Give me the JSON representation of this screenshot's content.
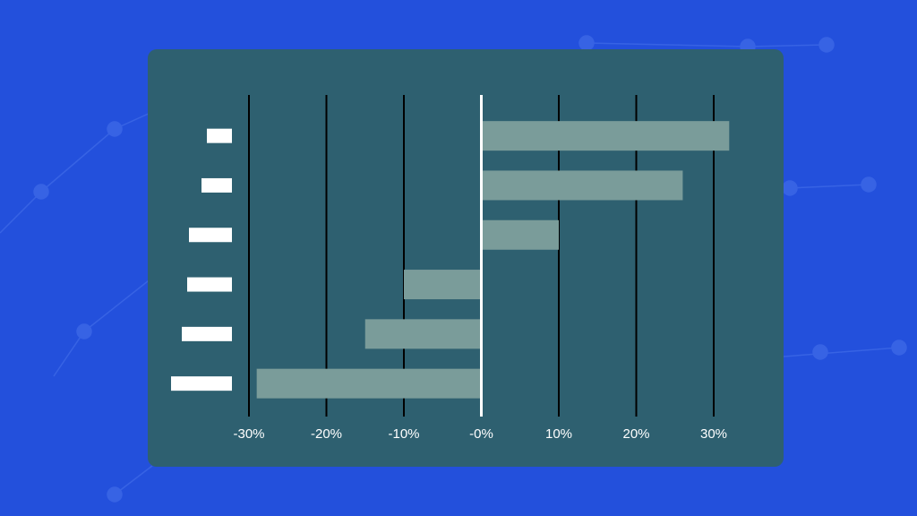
{
  "chart_data": {
    "type": "hbar",
    "categories": [
      null,
      null,
      null,
      null,
      null,
      null
    ],
    "values": [
      32,
      26,
      10,
      -10,
      -15,
      -29
    ],
    "color": "#7a9c9a",
    "xlim": [
      -30,
      30
    ],
    "xticks": [
      {
        "value": -30,
        "label": "-30%"
      },
      {
        "value": -20,
        "label": "-20%"
      },
      {
        "value": -10,
        "label": "-10%"
      },
      {
        "value": 0,
        "label": "-0%"
      },
      {
        "value": 10,
        "label": "10%"
      },
      {
        "value": 20,
        "label": "20%"
      },
      {
        "value": 30,
        "label": "30%"
      }
    ],
    "grid": true
  }
}
